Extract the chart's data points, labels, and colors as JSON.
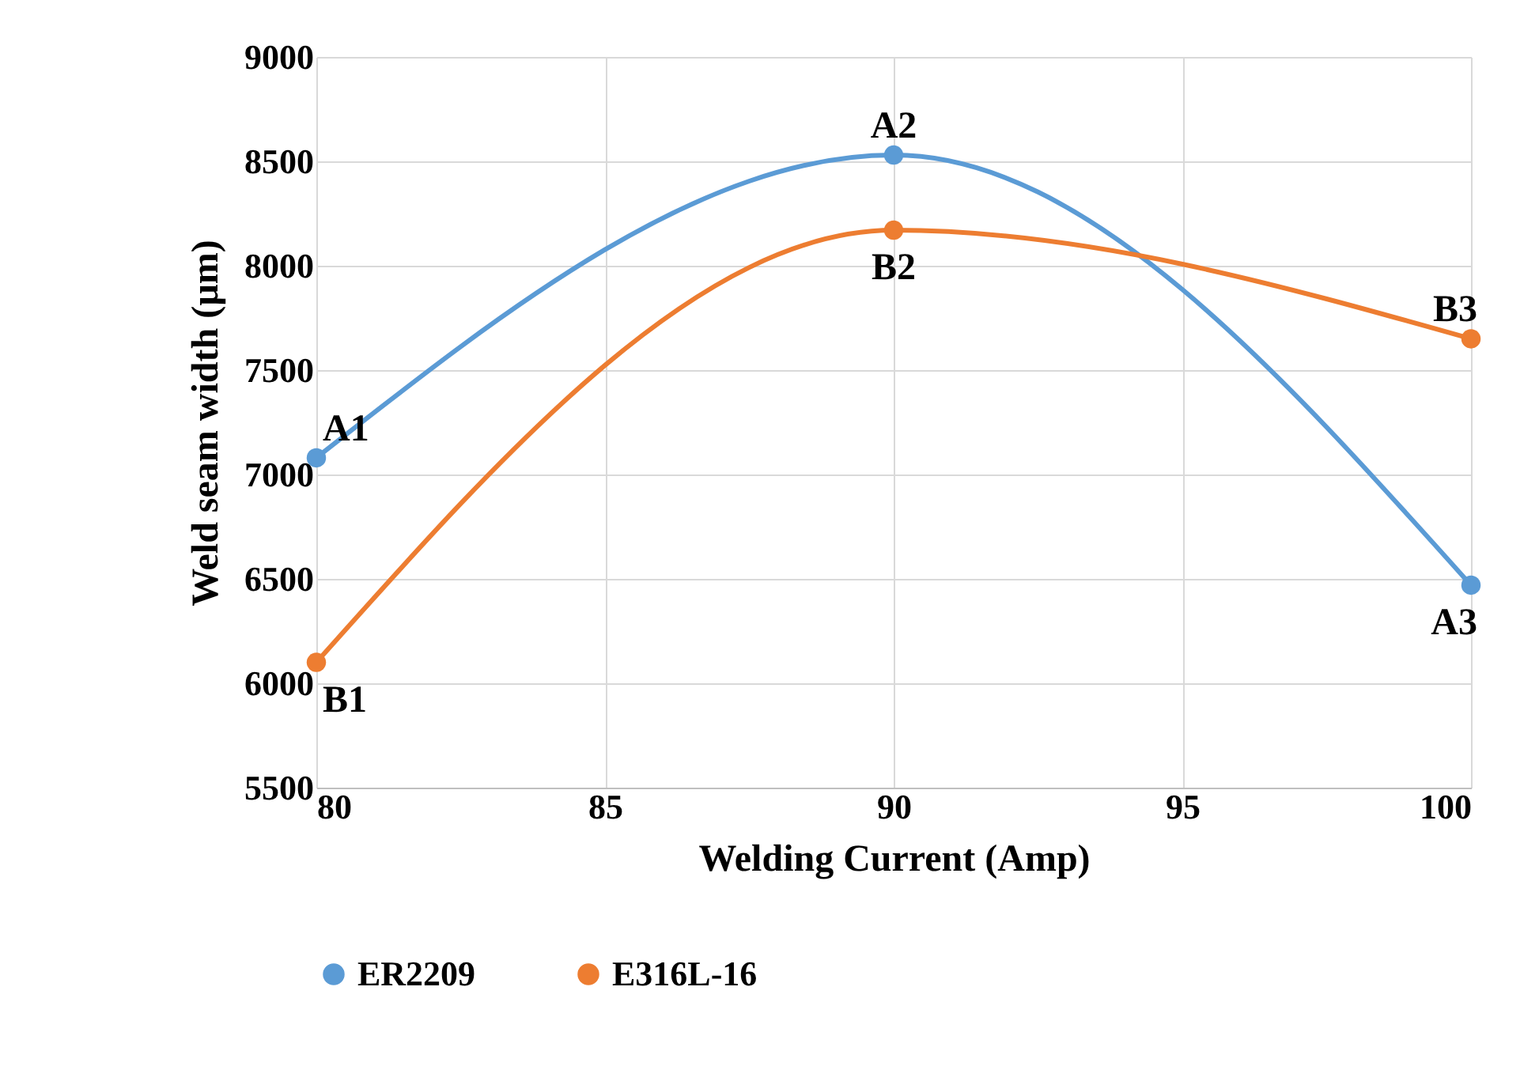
{
  "chart_data": {
    "type": "line",
    "xlabel": "Welding Current (Amp)",
    "ylabel": "Weld seam width (µm)",
    "x": [
      80,
      90,
      100
    ],
    "series": [
      {
        "name": "ER2209",
        "color": "#5b9bd5",
        "values": [
          7080,
          8530,
          6470
        ]
      },
      {
        "name": "E316L-16",
        "color": "#ed7d31",
        "values": [
          6100,
          8170,
          7650
        ]
      }
    ],
    "annotations": [
      {
        "text": "A1",
        "x": 80,
        "y": 7080
      },
      {
        "text": "A2",
        "x": 90,
        "y": 8530
      },
      {
        "text": "A3",
        "x": 100,
        "y": 6470
      },
      {
        "text": "B1",
        "x": 80,
        "y": 6100
      },
      {
        "text": "B2",
        "x": 90,
        "y": 8170
      },
      {
        "text": "B3",
        "x": 100,
        "y": 7650
      }
    ],
    "xlim": [
      80,
      100
    ],
    "xticks": [
      80,
      85,
      90,
      95,
      100
    ],
    "ylim": [
      5500,
      9000
    ],
    "yticks": [
      5500,
      6000,
      6500,
      7000,
      7500,
      8000,
      8500,
      9000
    ],
    "grid": true,
    "legend": "bottom",
    "marker": "circle",
    "line_style": "solid"
  }
}
